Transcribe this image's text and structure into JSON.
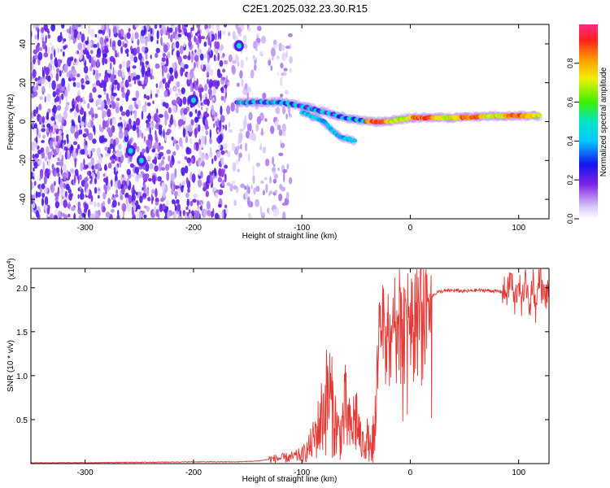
{
  "title": "C2E1.2025.032.23.30.R15",
  "colors": {
    "snr_line": "#e53935",
    "spectrogram_low": "#d8c8f5",
    "spectrogram_mid": "#6a1bdc",
    "frame": "#000000"
  },
  "colorbar": {
    "label": "Normalized spectral amplitude",
    "ticks": [
      "0.0",
      "0.2",
      "0.4",
      "0.6",
      "0.8"
    ],
    "tick_values": [
      0.0,
      0.2,
      0.4,
      0.6,
      0.8
    ],
    "range": [
      0,
      1
    ]
  },
  "chart_data": [
    {
      "type": "heatmap",
      "title": "C2E1.2025.032.23.30.R15",
      "xlabel": "Height of straight line (km)",
      "ylabel": "Frequency (Hz)",
      "xlim": [
        -350,
        128
      ],
      "ylim": [
        -50,
        50
      ],
      "x_ticks": [
        -300,
        -200,
        -100,
        0,
        100
      ],
      "y_ticks": [
        -40,
        -20,
        0,
        20,
        40
      ],
      "x_tick_labels": [
        "-300",
        "-200",
        "-100",
        "0",
        "100"
      ],
      "y_tick_labels": [
        "-40",
        "-20",
        "0",
        "20",
        "40"
      ],
      "colorscale": "rainbow",
      "features": {
        "noise_region_x": [
          -350,
          -120
        ],
        "main_trace": [
          {
            "x": -160,
            "y": 10
          },
          {
            "x": -120,
            "y": 10
          },
          {
            "x": -100,
            "y": 8
          },
          {
            "x": -80,
            "y": 5
          },
          {
            "x": -60,
            "y": 2
          },
          {
            "x": -40,
            "y": 0
          },
          {
            "x": -20,
            "y": 0
          },
          {
            "x": 0,
            "y": 2
          },
          {
            "x": 40,
            "y": 2
          },
          {
            "x": 80,
            "y": 3
          },
          {
            "x": 120,
            "y": 3
          }
        ],
        "descending_trace": [
          {
            "x": -100,
            "y": 5
          },
          {
            "x": -80,
            "y": 0
          },
          {
            "x": -65,
            "y": -8
          },
          {
            "x": -50,
            "y": -10
          }
        ],
        "isolated_peaks": [
          {
            "x": -158,
            "y": 39
          },
          {
            "x": -200,
            "y": 11
          },
          {
            "x": -258,
            "y": -15
          },
          {
            "x": -248,
            "y": -20
          }
        ]
      }
    },
    {
      "type": "line",
      "xlabel": "Height of straight line (km)",
      "ylabel": "SNR (10 * v/v)",
      "y_multiplier": "(x10",
      "y_multiplier_exp": "4",
      "y_multiplier_close": ")",
      "xlim": [
        -350,
        128
      ],
      "ylim": [
        0,
        2.22
      ],
      "x_ticks": [
        -300,
        -200,
        -100,
        0,
        100
      ],
      "y_ticks": [
        0.5,
        1.0,
        1.5,
        2.0
      ],
      "x_tick_labels": [
        "-300",
        "-200",
        "-100",
        "0",
        "100"
      ],
      "y_tick_labels": [
        "0.5",
        "1.0",
        "1.5",
        "2.0"
      ],
      "series": [
        {
          "x": [
            -350,
            -300,
            -250,
            -200,
            -160,
            -140,
            -130,
            -120,
            -110,
            -100,
            -95,
            -90,
            -85,
            -80,
            -75,
            -70,
            -65,
            -60,
            -55,
            -50,
            -45,
            -40,
            -35,
            -32,
            -30,
            -28,
            -25,
            -22,
            -20,
            -18,
            -15,
            -12,
            -10,
            -8,
            -5,
            -2,
            0,
            3,
            6,
            10,
            15,
            20,
            25,
            30,
            40,
            50,
            60,
            70,
            80,
            90,
            93,
            96,
            100,
            103,
            106,
            110,
            113,
            116,
            119,
            122,
            128
          ],
          "y": [
            0.01,
            0.01,
            0.015,
            0.02,
            0.02,
            0.03,
            0.05,
            0.06,
            0.07,
            0.1,
            0.15,
            0.25,
            0.4,
            0.6,
            0.82,
            0.5,
            0.3,
            0.6,
            0.35,
            0.55,
            0.2,
            0.3,
            0.1,
            0.5,
            1.2,
            1.75,
            1.6,
            1.2,
            1.8,
            1.0,
            1.85,
            1.4,
            2.05,
            1.5,
            1.9,
            1.7,
            1.95,
            1.75,
            1.9,
            1.8,
            1.95,
            1.9,
            1.95,
            1.96,
            1.97,
            1.96,
            1.97,
            1.97,
            1.96,
            1.95,
            2.15,
            1.8,
            2.1,
            1.75,
            2.2,
            1.7,
            2.15,
            1.72,
            2.2,
            1.92,
            1.91
          ]
        }
      ]
    }
  ]
}
